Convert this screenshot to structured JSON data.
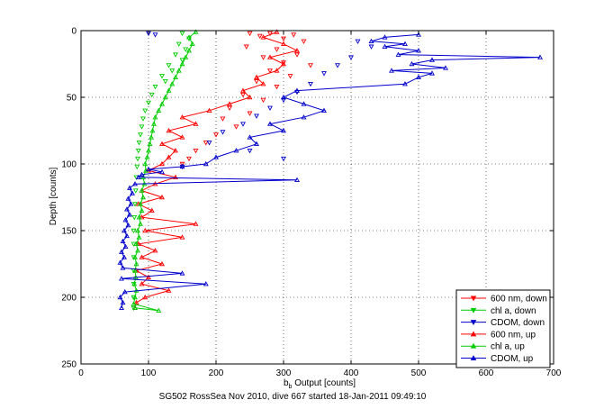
{
  "chart_data": {
    "type": "scatter",
    "title": "",
    "xlabel_main": "b",
    "xlabel_sub": "b",
    "xlabel_rest": " Output [counts]",
    "ylabel": "Depth [counts]",
    "caption": "SG502 RossSea Nov 2010, dive 667 started 18-Jan-2011 09:49:10",
    "xlim": [
      0,
      700
    ],
    "ylim": [
      0,
      250
    ],
    "y_reversed": true,
    "xticks": [
      0,
      100,
      200,
      300,
      400,
      500,
      600,
      700
    ],
    "yticks": [
      0,
      50,
      100,
      150,
      200,
      250
    ],
    "grid": "dotted",
    "legend_position": "bottom-right",
    "series": [
      {
        "name": "600 nm, down",
        "color": "#ff0000",
        "marker": "triangle-down",
        "line": false,
        "points": [
          [
            250,
            2
          ],
          [
            265,
            4
          ],
          [
            280,
            2
          ],
          [
            300,
            6
          ],
          [
            315,
            3
          ],
          [
            330,
            8
          ],
          [
            245,
            12
          ],
          [
            290,
            14
          ],
          [
            320,
            18
          ],
          [
            270,
            20
          ],
          [
            300,
            24
          ],
          [
            340,
            26
          ],
          [
            280,
            30
          ],
          [
            310,
            34
          ],
          [
            260,
            38
          ],
          [
            290,
            42
          ],
          [
            240,
            48
          ],
          [
            270,
            52
          ],
          [
            220,
            58
          ],
          [
            250,
            62
          ],
          [
            210,
            66
          ],
          [
            230,
            72
          ],
          [
            200,
            78
          ],
          [
            185,
            84
          ],
          [
            170,
            90
          ],
          [
            160,
            96
          ],
          [
            150,
            100
          ]
        ]
      },
      {
        "name": "chl a, down",
        "color": "#00cc00",
        "marker": "triangle-down",
        "line": false,
        "points": [
          [
            150,
            2
          ],
          [
            160,
            6
          ],
          [
            145,
            10
          ],
          [
            155,
            14
          ],
          [
            140,
            18
          ],
          [
            150,
            22
          ],
          [
            130,
            26
          ],
          [
            135,
            30
          ],
          [
            120,
            34
          ],
          [
            125,
            38
          ],
          [
            110,
            42
          ],
          [
            105,
            48
          ],
          [
            100,
            54
          ],
          [
            95,
            60
          ],
          [
            92,
            66
          ],
          [
            90,
            72
          ],
          [
            88,
            78
          ],
          [
            86,
            84
          ],
          [
            85,
            90
          ],
          [
            84,
            96
          ],
          [
            83,
            102
          ],
          [
            82,
            110
          ],
          [
            81,
            120
          ],
          [
            80,
            130
          ],
          [
            79,
            140
          ],
          [
            78,
            150
          ],
          [
            78,
            160
          ],
          [
            78,
            170
          ],
          [
            78,
            180
          ],
          [
            78,
            190
          ],
          [
            78,
            200
          ],
          [
            78,
            208
          ]
        ]
      },
      {
        "name": "CDOM, down",
        "color": "#0000cc",
        "marker": "triangle-down",
        "line": false,
        "points": [
          [
            100,
            2
          ],
          [
            110,
            3
          ],
          [
            410,
            8
          ],
          [
            430,
            12
          ],
          [
            400,
            20
          ],
          [
            380,
            26
          ],
          [
            360,
            32
          ],
          [
            340,
            40
          ],
          [
            320,
            46
          ],
          [
            300,
            52
          ],
          [
            280,
            58
          ],
          [
            260,
            64
          ],
          [
            240,
            70
          ],
          [
            210,
            76
          ],
          [
            190,
            84
          ],
          [
            250,
            90
          ],
          [
            300,
            96
          ],
          [
            150,
            102
          ]
        ]
      },
      {
        "name": "600 nm, up",
        "color": "#ff0000",
        "marker": "triangle-up",
        "line": true,
        "points": [
          [
            80,
            208
          ],
          [
            82,
            204
          ],
          [
            95,
            200
          ],
          [
            130,
            195
          ],
          [
            90,
            190
          ],
          [
            100,
            185
          ],
          [
            82,
            180
          ],
          [
            120,
            175
          ],
          [
            90,
            170
          ],
          [
            110,
            165
          ],
          [
            85,
            160
          ],
          [
            150,
            155
          ],
          [
            95,
            150
          ],
          [
            170,
            145
          ],
          [
            90,
            140
          ],
          [
            105,
            135
          ],
          [
            85,
            130
          ],
          [
            120,
            125
          ],
          [
            90,
            120
          ],
          [
            110,
            115
          ],
          [
            140,
            110
          ],
          [
            100,
            105
          ],
          [
            120,
            100
          ],
          [
            130,
            95
          ],
          [
            140,
            90
          ],
          [
            120,
            85
          ],
          [
            150,
            80
          ],
          [
            130,
            75
          ],
          [
            170,
            70
          ],
          [
            150,
            65
          ],
          [
            190,
            60
          ],
          [
            220,
            55
          ],
          [
            250,
            50
          ],
          [
            240,
            45
          ],
          [
            270,
            40
          ],
          [
            260,
            35
          ],
          [
            290,
            30
          ],
          [
            300,
            25
          ],
          [
            280,
            20
          ],
          [
            320,
            15
          ],
          [
            300,
            10
          ],
          [
            270,
            5
          ],
          [
            290,
            1
          ]
        ]
      },
      {
        "name": "chl a, up",
        "color": "#00cc00",
        "marker": "triangle-up",
        "line": true,
        "points": [
          [
            80,
            208
          ],
          [
            115,
            210
          ],
          [
            78,
            205
          ],
          [
            80,
            200
          ],
          [
            82,
            195
          ],
          [
            79,
            190
          ],
          [
            81,
            185
          ],
          [
            80,
            180
          ],
          [
            82,
            175
          ],
          [
            80,
            170
          ],
          [
            84,
            165
          ],
          [
            82,
            160
          ],
          [
            86,
            155
          ],
          [
            84,
            150
          ],
          [
            88,
            145
          ],
          [
            86,
            140
          ],
          [
            90,
            135
          ],
          [
            88,
            130
          ],
          [
            92,
            125
          ],
          [
            90,
            120
          ],
          [
            94,
            115
          ],
          [
            92,
            110
          ],
          [
            96,
            105
          ],
          [
            95,
            100
          ],
          [
            98,
            95
          ],
          [
            100,
            90
          ],
          [
            102,
            85
          ],
          [
            104,
            80
          ],
          [
            106,
            75
          ],
          [
            108,
            70
          ],
          [
            110,
            65
          ],
          [
            115,
            60
          ],
          [
            120,
            55
          ],
          [
            125,
            50
          ],
          [
            130,
            45
          ],
          [
            135,
            40
          ],
          [
            140,
            35
          ],
          [
            145,
            30
          ],
          [
            150,
            25
          ],
          [
            155,
            20
          ],
          [
            160,
            15
          ],
          [
            165,
            10
          ],
          [
            160,
            5
          ],
          [
            170,
            1
          ]
        ]
      },
      {
        "name": "CDOM, up",
        "color": "#0000cc",
        "marker": "triangle-up",
        "line": true,
        "points": [
          [
            60,
            208
          ],
          [
            62,
            204
          ],
          [
            58,
            200
          ],
          [
            65,
            196
          ],
          [
            185,
            190
          ],
          [
            60,
            186
          ],
          [
            150,
            182
          ],
          [
            62,
            178
          ],
          [
            58,
            174
          ],
          [
            64,
            170
          ],
          [
            60,
            166
          ],
          [
            66,
            162
          ],
          [
            62,
            158
          ],
          [
            68,
            154
          ],
          [
            64,
            150
          ],
          [
            70,
            146
          ],
          [
            66,
            142
          ],
          [
            72,
            138
          ],
          [
            68,
            134
          ],
          [
            74,
            130
          ],
          [
            70,
            126
          ],
          [
            76,
            122
          ],
          [
            72,
            118
          ],
          [
            80,
            115
          ],
          [
            320,
            112
          ],
          [
            85,
            110
          ],
          [
            90,
            108
          ],
          [
            120,
            106
          ],
          [
            100,
            104
          ],
          [
            150,
            102
          ],
          [
            185,
            100
          ],
          [
            200,
            95
          ],
          [
            230,
            90
          ],
          [
            260,
            85
          ],
          [
            250,
            80
          ],
          [
            300,
            75
          ],
          [
            280,
            70
          ],
          [
            330,
            65
          ],
          [
            360,
            60
          ],
          [
            330,
            55
          ],
          [
            300,
            50
          ],
          [
            320,
            45
          ],
          [
            480,
            40
          ],
          [
            500,
            35
          ],
          [
            520,
            32
          ],
          [
            460,
            30
          ],
          [
            540,
            28
          ],
          [
            490,
            25
          ],
          [
            520,
            22
          ],
          [
            680,
            20
          ],
          [
            470,
            18
          ],
          [
            500,
            15
          ],
          [
            450,
            12
          ],
          [
            480,
            10
          ],
          [
            430,
            8
          ],
          [
            450,
            5
          ],
          [
            500,
            3
          ]
        ]
      }
    ]
  }
}
